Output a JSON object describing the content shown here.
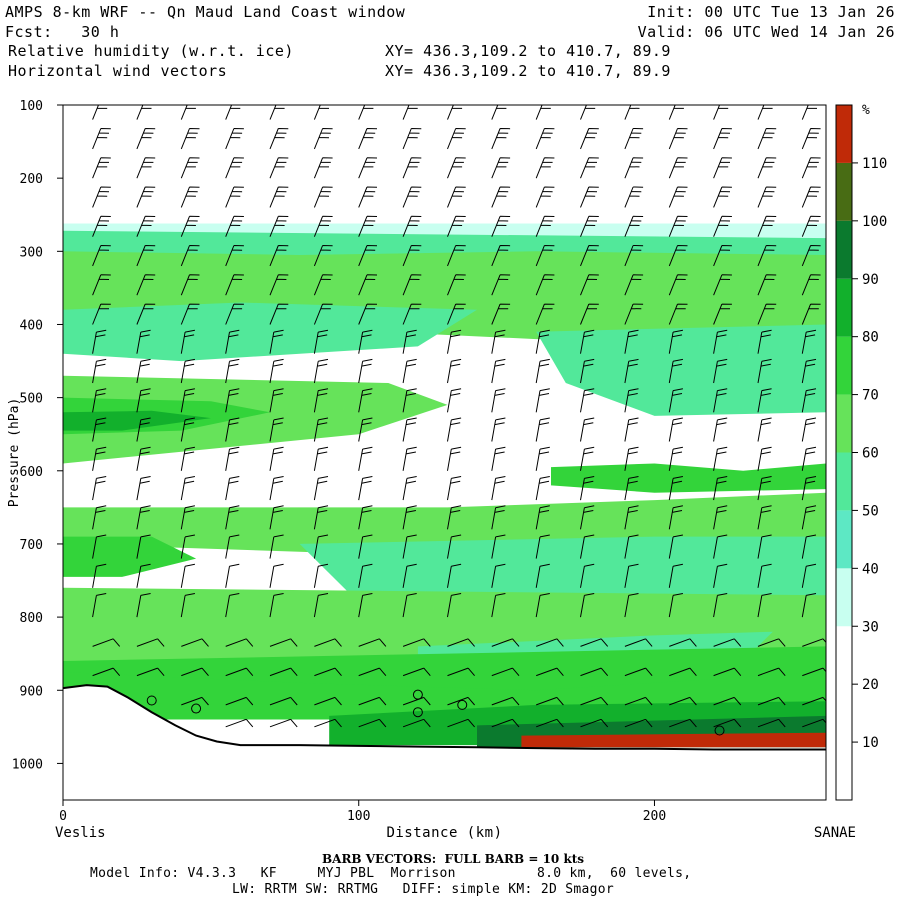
{
  "header": {
    "title": "AMPS 8-km WRF -- Qn Maud Land Coast window",
    "forecast": "Fcst:   30 h",
    "init": "Init: 00 UTC Tue 13 Jan 26",
    "valid": "Valid: 06 UTC Wed 14 Jan 26",
    "field1": "Relative humidity (w.r.t. ice)",
    "field2": "Horizontal wind vectors",
    "xy1": "XY= 436.3,109.2 to 410.7, 89.9",
    "xy2": "XY= 436.3,109.2 to 410.7, 89.9"
  },
  "chart_data": {
    "type": "heatmap",
    "title": "Relative humidity (w.r.t. ice)",
    "xlabel": "Distance (km)",
    "ylabel": "Pressure (hPa)",
    "xlim": [
      0,
      258
    ],
    "ylim": [
      1050,
      100
    ],
    "x_ticks": [
      0,
      100,
      200
    ],
    "y_ticks": [
      100,
      200,
      300,
      400,
      500,
      600,
      700,
      800,
      900,
      1000
    ],
    "x_start_label": "Veslis",
    "x_end_label": "SANAE",
    "colorbar": {
      "unit": "%",
      "levels": [
        10,
        20,
        30,
        40,
        50,
        60,
        70,
        80,
        90,
        100,
        110
      ],
      "colors": [
        "#ffffff",
        "#ffffff",
        "#ffffff",
        "#c8fff0",
        "#5de8c4",
        "#52e89a",
        "#66e35a",
        "#33d43a",
        "#12b02c",
        "#0b7a2e",
        "#486c14",
        "#c02a08"
      ]
    },
    "terrain": [
      [
        0,
        897
      ],
      [
        8,
        893
      ],
      [
        15,
        895
      ],
      [
        22,
        910
      ],
      [
        30,
        930
      ],
      [
        38,
        948
      ],
      [
        45,
        962
      ],
      [
        52,
        970
      ],
      [
        60,
        975
      ],
      [
        80,
        975
      ],
      [
        100,
        976
      ],
      [
        120,
        977
      ],
      [
        140,
        978
      ],
      [
        160,
        979
      ],
      [
        180,
        980
      ],
      [
        200,
        980
      ],
      [
        220,
        981
      ],
      [
        240,
        981
      ],
      [
        258,
        981
      ]
    ],
    "rh_regions": [
      {
        "rh": 35,
        "points": [
          [
            0,
            262
          ],
          [
            258,
            262
          ],
          [
            258,
            300
          ],
          [
            0,
            300
          ]
        ]
      },
      {
        "rh": 55,
        "points": [
          [
            0,
            272
          ],
          [
            258,
            282
          ],
          [
            258,
            360
          ],
          [
            0,
            330
          ]
        ]
      },
      {
        "rh": 60,
        "points": [
          [
            0,
            300
          ],
          [
            80,
            305
          ],
          [
            160,
            300
          ],
          [
            258,
            305
          ],
          [
            258,
            420
          ],
          [
            160,
            420
          ],
          [
            0,
            390
          ]
        ]
      },
      {
        "rh": 50,
        "points": [
          [
            0,
            380
          ],
          [
            60,
            370
          ],
          [
            140,
            380
          ],
          [
            120,
            430
          ],
          [
            40,
            450
          ],
          [
            0,
            440
          ]
        ]
      },
      {
        "rh": 55,
        "points": [
          [
            160,
            410
          ],
          [
            258,
            400
          ],
          [
            258,
            520
          ],
          [
            200,
            525
          ],
          [
            170,
            480
          ]
        ]
      },
      {
        "rh": 50,
        "points": [
          [
            200,
            445
          ],
          [
            240,
            440
          ],
          [
            258,
            450
          ],
          [
            258,
            505
          ],
          [
            230,
            515
          ],
          [
            205,
            495
          ]
        ]
      },
      {
        "rh": 65,
        "points": [
          [
            0,
            470
          ],
          [
            110,
            480
          ],
          [
            130,
            510
          ],
          [
            100,
            550
          ],
          [
            0,
            590
          ]
        ]
      },
      {
        "rh": 75,
        "points": [
          [
            0,
            500
          ],
          [
            50,
            505
          ],
          [
            70,
            520
          ],
          [
            40,
            545
          ],
          [
            0,
            550
          ]
        ]
      },
      {
        "rh": 85,
        "points": [
          [
            0,
            520
          ],
          [
            30,
            518
          ],
          [
            50,
            528
          ],
          [
            20,
            545
          ],
          [
            0,
            545
          ]
        ]
      },
      {
        "rh": 70,
        "points": [
          [
            165,
            595
          ],
          [
            200,
            590
          ],
          [
            230,
            600
          ],
          [
            258,
            590
          ],
          [
            258,
            625
          ],
          [
            200,
            630
          ],
          [
            165,
            620
          ]
        ]
      },
      {
        "rh": 65,
        "points": [
          [
            0,
            650
          ],
          [
            130,
            650
          ],
          [
            200,
            640
          ],
          [
            258,
            630
          ],
          [
            258,
            700
          ],
          [
            150,
            720
          ],
          [
            0,
            700
          ]
        ]
      },
      {
        "rh": 55,
        "points": [
          [
            80,
            700
          ],
          [
            200,
            690
          ],
          [
            258,
            690
          ],
          [
            258,
            800
          ],
          [
            200,
            810
          ],
          [
            100,
            780
          ]
        ]
      },
      {
        "rh": 70,
        "points": [
          [
            0,
            690
          ],
          [
            30,
            690
          ],
          [
            45,
            720
          ],
          [
            20,
            745
          ],
          [
            0,
            745
          ]
        ]
      },
      {
        "rh": 65,
        "points": [
          [
            0,
            760
          ],
          [
            258,
            770
          ],
          [
            258,
            850
          ],
          [
            150,
            870
          ],
          [
            0,
            860
          ]
        ]
      },
      {
        "rh": 55,
        "points": [
          [
            120,
            840
          ],
          [
            200,
            825
          ],
          [
            240,
            820
          ],
          [
            230,
            860
          ],
          [
            160,
            885
          ],
          [
            120,
            880
          ]
        ]
      },
      {
        "rh": 70,
        "points": [
          [
            0,
            860
          ],
          [
            258,
            840
          ],
          [
            258,
            930
          ],
          [
            0,
            930
          ]
        ]
      },
      {
        "rh": 75,
        "points": [
          [
            0,
            875
          ],
          [
            80,
            890
          ],
          [
            160,
            900
          ],
          [
            258,
            875
          ],
          [
            258,
            940
          ],
          [
            0,
            940
          ]
        ]
      },
      {
        "rh": 80,
        "points": [
          [
            90,
            935
          ],
          [
            160,
            920
          ],
          [
            258,
            915
          ],
          [
            258,
            975
          ],
          [
            90,
            975
          ]
        ]
      },
      {
        "rh": 95,
        "points": [
          [
            140,
            948
          ],
          [
            258,
            935
          ],
          [
            258,
            978
          ],
          [
            140,
            978
          ]
        ]
      },
      {
        "rh": 115,
        "points": [
          [
            155,
            962
          ],
          [
            258,
            958
          ],
          [
            258,
            978
          ],
          [
            155,
            978
          ]
        ]
      }
    ],
    "wind": {
      "description": "horizontal wind barbs, FULL BARB = 10 kts",
      "columns_km": [
        10,
        25,
        40,
        55,
        70,
        85,
        100,
        115,
        130,
        145,
        160,
        175,
        190,
        205,
        220,
        235,
        250
      ],
      "pressure_levels": [
        120,
        160,
        200,
        240,
        280,
        320,
        360,
        400,
        440,
        480,
        520,
        560,
        600,
        640,
        680,
        720,
        760,
        800,
        840,
        880,
        920,
        950
      ]
    },
    "calm_markers_km_hpa": [
      [
        30,
        914
      ],
      [
        45,
        925
      ],
      [
        120,
        906
      ],
      [
        120,
        930
      ],
      [
        135,
        920
      ],
      [
        222,
        955
      ]
    ]
  },
  "footer": {
    "barb_note": "BARB VECTORS:  FULL BARB = 10 kts",
    "model_info": "Model Info: V4.3.3   KF     MYJ PBL  Morrison          8.0 km,  60 levels,",
    "physics": "LW: RRTM SW: RRTMG   DIFF: simple KM: 2D Smagor"
  }
}
